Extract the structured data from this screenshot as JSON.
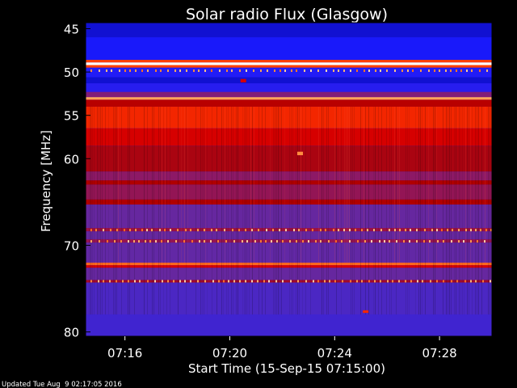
{
  "chart_data": {
    "type": "heatmap",
    "title": "Solar radio Flux (Glasgow)",
    "xlabel": "Start Time (15-Sep-15 07:15:00)",
    "ylabel": "Frequency [MHz]",
    "x_range": [
      "07:14:30",
      "07:30:00"
    ],
    "y_range_mhz": [
      44.3,
      80.5
    ],
    "xticks": [
      {
        "label": "07:16",
        "minutes_after_start": 1
      },
      {
        "label": "07:20",
        "minutes_after_start": 5
      },
      {
        "label": "07:24",
        "minutes_after_start": 9
      },
      {
        "label": "07:28",
        "minutes_after_start": 13
      }
    ],
    "yticks": [
      45,
      50,
      55,
      60,
      70,
      80
    ],
    "colormap": [
      "#00007f",
      "#1a1aff",
      "#5a2bb0",
      "#8c1a6a",
      "#b00000",
      "#e00000",
      "#ff4000",
      "#ffa050",
      "#ffffff"
    ],
    "frequency_bands": [
      {
        "from": 44.3,
        "to": 46.0,
        "level": 0.08
      },
      {
        "from": 46.0,
        "to": 48.6,
        "level": 0.12
      },
      {
        "from": 48.6,
        "to": 48.9,
        "level": 0.75
      },
      {
        "from": 48.9,
        "to": 49.2,
        "level": 1.0
      },
      {
        "from": 49.2,
        "to": 49.5,
        "level": 0.75
      },
      {
        "from": 49.5,
        "to": 50.6,
        "level": 0.14
      },
      {
        "from": 50.6,
        "to": 51.3,
        "level": 0.08
      },
      {
        "from": 51.3,
        "to": 52.3,
        "level": 0.15
      },
      {
        "from": 52.3,
        "to": 52.9,
        "level": 0.35
      },
      {
        "from": 52.9,
        "to": 53.2,
        "level": 0.88
      },
      {
        "from": 53.2,
        "to": 54.0,
        "level": 0.52
      },
      {
        "from": 54.0,
        "to": 56.5,
        "level": 0.7
      },
      {
        "from": 56.5,
        "to": 58.5,
        "level": 0.6
      },
      {
        "from": 58.5,
        "to": 61.5,
        "level": 0.48
      },
      {
        "from": 61.5,
        "to": 62.5,
        "level": 0.38
      },
      {
        "from": 62.5,
        "to": 63.0,
        "level": 0.5
      },
      {
        "from": 63.0,
        "to": 64.7,
        "level": 0.4
      },
      {
        "from": 64.7,
        "to": 65.3,
        "level": 0.5
      },
      {
        "from": 65.3,
        "to": 68.0,
        "level": 0.28
      },
      {
        "from": 68.0,
        "to": 68.4,
        "level": 0.42
      },
      {
        "from": 68.4,
        "to": 69.3,
        "level": 0.28
      },
      {
        "from": 69.3,
        "to": 69.7,
        "level": 0.4
      },
      {
        "from": 69.7,
        "to": 72.0,
        "level": 0.27
      },
      {
        "from": 72.0,
        "to": 72.3,
        "level": 0.8
      },
      {
        "from": 72.3,
        "to": 72.6,
        "level": 0.6
      },
      {
        "from": 72.6,
        "to": 74.0,
        "level": 0.28
      },
      {
        "from": 74.0,
        "to": 74.3,
        "level": 0.45
      },
      {
        "from": 74.3,
        "to": 78.0,
        "level": 0.22
      },
      {
        "from": 78.0,
        "to": 80.5,
        "level": 0.2
      }
    ],
    "bursts": [
      {
        "time": "07:22:40",
        "from": 59.2,
        "to": 59.6,
        "level": 0.85
      },
      {
        "time": "07:20:30",
        "from": 50.8,
        "to": 51.2,
        "level": 0.6
      },
      {
        "time": "07:25:10",
        "from": 77.5,
        "to": 77.8,
        "level": 0.7
      }
    ],
    "grid": false,
    "legend": "none"
  },
  "footer": {
    "updated": "Updated Tue Aug  9 02:17:05 2016"
  }
}
